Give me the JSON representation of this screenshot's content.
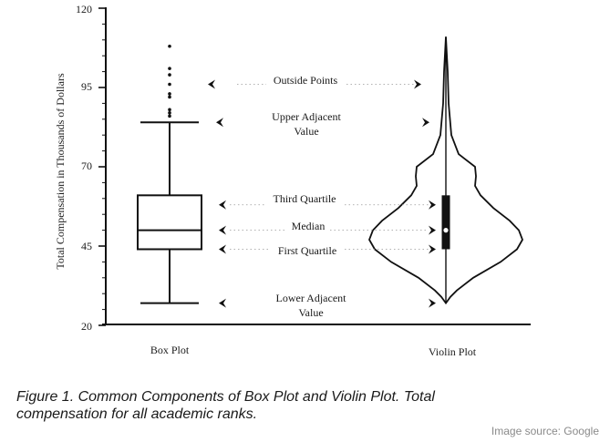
{
  "chart_data": {
    "type": "box-violin",
    "ylabel": "Total Compensation in Thousands of Dollars",
    "yticks": [
      "120",
      "95",
      "70",
      "45",
      "20"
    ],
    "ylim": [
      20,
      120
    ],
    "categories": [
      "Box Plot",
      "Violin Plot"
    ],
    "box": {
      "lower_adjacent": 27,
      "first_quartile": 44,
      "median": 50,
      "third_quartile": 61,
      "upper_adjacent": 84,
      "outside_points": [
        86,
        87,
        88,
        92,
        93,
        96,
        99,
        101,
        108
      ]
    },
    "violin": {
      "min": 27,
      "max": 111,
      "median": 50
    },
    "annotations": {
      "outside_points": "Outside Points",
      "upper_adjacent_1": "Upper Adjacent",
      "upper_adjacent_2": "Value",
      "third_quartile": "Third Quartile",
      "median": "Median",
      "first_quartile": "First Quartile",
      "lower_adjacent_1": "Lower Adjacent",
      "lower_adjacent_2": "Value"
    }
  },
  "caption_line1": "Figure 1.  Common Components of Box Plot and Violin Plot. Total",
  "caption_line2": "compensation for all academic ranks.",
  "image_source": "Image source: Google"
}
